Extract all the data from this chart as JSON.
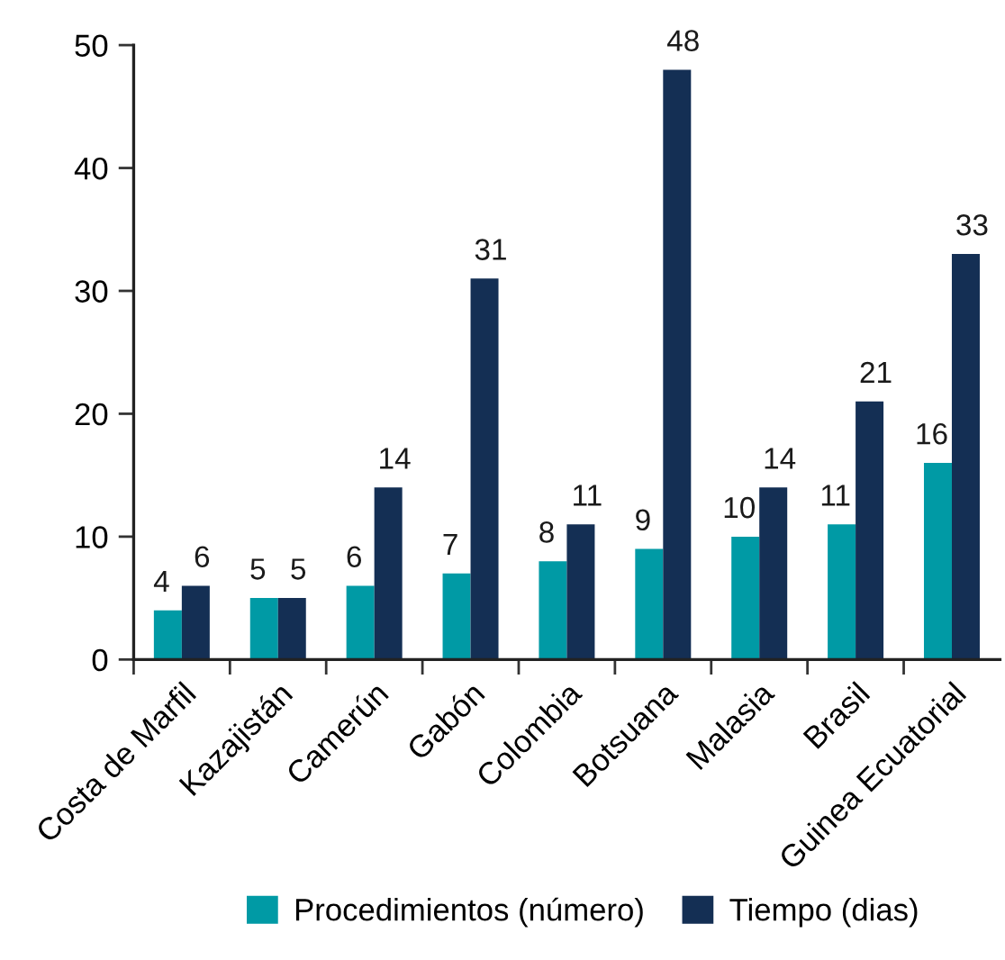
{
  "chart_data": {
    "type": "bar",
    "categories": [
      "Costa de Marfil",
      "Kazajistán",
      "Camerún",
      "Gabón",
      "Colombia",
      "Botsuana",
      "Malasia",
      "Brasil",
      "Guinea Ecuatorial"
    ],
    "series": [
      {
        "name": "Procedimientos (número)",
        "color": "#009aa5",
        "values": [
          4,
          5,
          6,
          7,
          8,
          9,
          10,
          11,
          16
        ]
      },
      {
        "name": "Tiempo (dias)",
        "color": "#142f54",
        "values": [
          6,
          5,
          14,
          31,
          11,
          48,
          14,
          21,
          33
        ]
      }
    ],
    "ylim": [
      0,
      50
    ],
    "yticks": [
      0,
      10,
      20,
      30,
      40,
      50
    ],
    "data_labels": true,
    "grid": false,
    "legend": "bottom"
  }
}
